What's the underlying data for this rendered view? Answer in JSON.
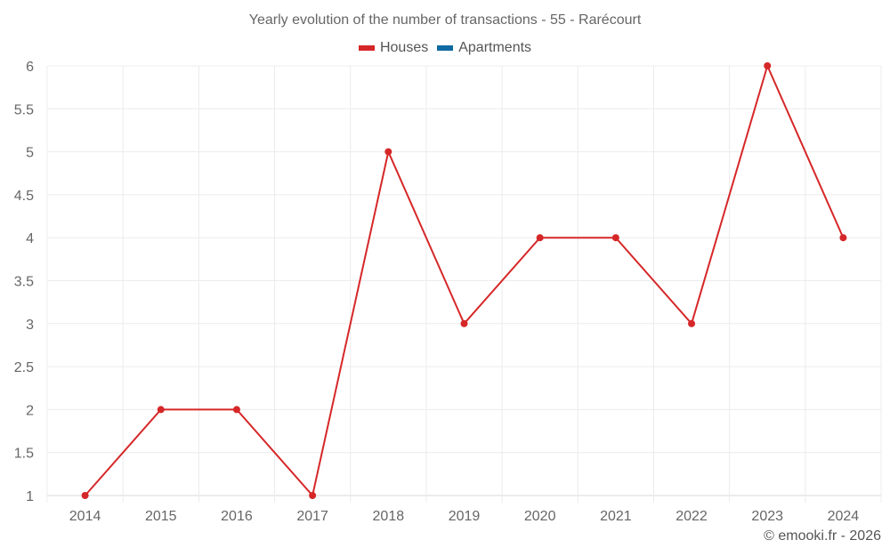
{
  "chart_data": {
    "type": "line",
    "title": "Yearly evolution of the number of transactions - 55 - Rarécourt",
    "categories": [
      "2014",
      "2015",
      "2016",
      "2017",
      "2018",
      "2019",
      "2020",
      "2021",
      "2022",
      "2023",
      "2024"
    ],
    "series": [
      {
        "name": "Houses",
        "color": "#d62728",
        "values": [
          1,
          2,
          2,
          1,
          5,
          3,
          4,
          4,
          3,
          6,
          4
        ]
      },
      {
        "name": "Apartments",
        "color": "#0e6aa3",
        "values": []
      }
    ],
    "xlabel": "",
    "ylabel": "",
    "ylim": [
      1,
      6
    ],
    "yticks": [
      "1",
      "1.5",
      "2",
      "2.5",
      "3",
      "3.5",
      "4",
      "4.5",
      "5",
      "5.5",
      "6"
    ],
    "grid": true,
    "legend_position": "top"
  },
  "legend": [
    {
      "label": "Houses",
      "color": "#d62728"
    },
    {
      "label": "Apartments",
      "color": "#0e6aa3"
    }
  ],
  "footer": "© emooki.fr - 2026"
}
